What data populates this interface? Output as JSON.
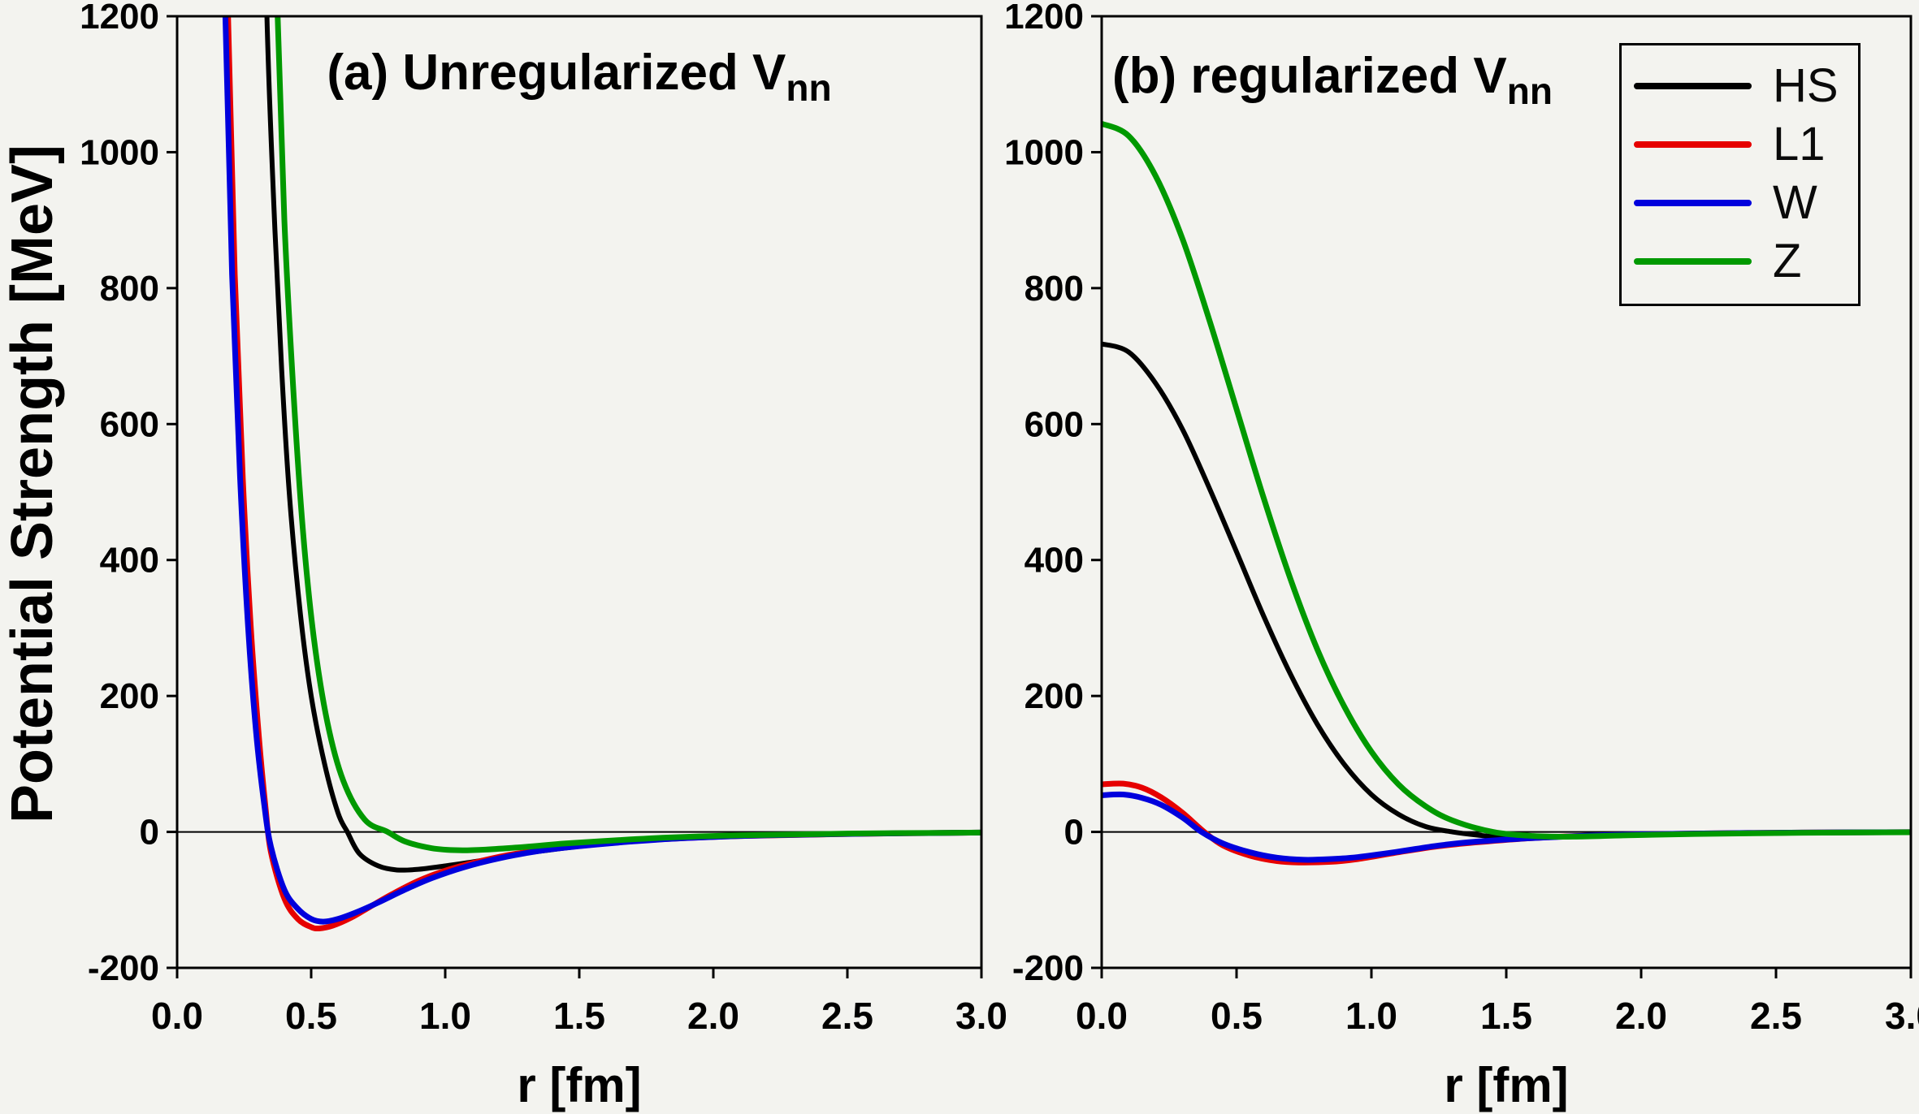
{
  "figure": {
    "background": "#f3f3ef",
    "y_axis_title": "Potential Strength [MeV]",
    "x_axis_title": "r [fm]"
  },
  "chart_data": {
    "type": "line",
    "xlabel": "r [fm]",
    "ylabel": "Potential Strength [MeV]",
    "xlim": [
      0,
      3
    ],
    "ylim": [
      -200,
      1200
    ],
    "grid": false,
    "zero_line": true,
    "yticks": [
      -200,
      0,
      200,
      400,
      600,
      800,
      1000,
      1200
    ],
    "xticks": [
      0,
      0.5,
      1,
      1.5,
      2,
      2.5,
      3
    ],
    "xtick_labels": [
      "0.0",
      "0.5",
      "1.0",
      "1.5",
      "2.0",
      "2.5",
      "3.0"
    ],
    "legend": {
      "position": "top-right of panel b",
      "entries": [
        {
          "label": "HS",
          "color": "#000000"
        },
        {
          "label": "L1",
          "color": "#e60000"
        },
        {
          "label": "W",
          "color": "#0000dd"
        },
        {
          "label": "Z",
          "color": "#009900"
        }
      ]
    },
    "panels": [
      {
        "id": "a",
        "title_prefix": "(a) Unregularized V",
        "title_sub": "nn",
        "series": [
          {
            "name": "HS",
            "color": "#000000",
            "points": [
              [
                0.3,
                2000
              ],
              [
                0.315,
                1600
              ],
              [
                0.335,
                1200
              ],
              [
                0.36,
                930
              ],
              [
                0.39,
                680
              ],
              [
                0.42,
                490
              ],
              [
                0.46,
                320
              ],
              [
                0.5,
                200
              ],
              [
                0.55,
                100
              ],
              [
                0.6,
                28
              ],
              [
                0.635,
                0
              ],
              [
                0.68,
                -32
              ],
              [
                0.75,
                -50
              ],
              [
                0.82,
                -56
              ],
              [
                0.9,
                -55
              ],
              [
                1.0,
                -50
              ],
              [
                1.12,
                -43
              ],
              [
                1.25,
                -34
              ],
              [
                1.4,
                -26
              ],
              [
                1.6,
                -17
              ],
              [
                1.8,
                -11
              ],
              [
                2.1,
                -6
              ],
              [
                2.5,
                -3
              ],
              [
                3.0,
                -1
              ]
            ]
          },
          {
            "name": "L1",
            "color": "#e60000",
            "points": [
              [
                0.145,
                2200
              ],
              [
                0.165,
                1700
              ],
              [
                0.19,
                1200
              ],
              [
                0.215,
                820
              ],
              [
                0.245,
                520
              ],
              [
                0.275,
                300
              ],
              [
                0.305,
                140
              ],
              [
                0.33,
                35
              ],
              [
                0.35,
                -30
              ],
              [
                0.4,
                -98
              ],
              [
                0.45,
                -128
              ],
              [
                0.5,
                -140
              ],
              [
                0.53,
                -142
              ],
              [
                0.58,
                -138
              ],
              [
                0.65,
                -126
              ],
              [
                0.72,
                -110
              ],
              [
                0.8,
                -92
              ],
              [
                0.9,
                -72
              ],
              [
                1.0,
                -57
              ],
              [
                1.12,
                -44
              ],
              [
                1.25,
                -33
              ],
              [
                1.4,
                -25
              ],
              [
                1.6,
                -17
              ],
              [
                1.8,
                -11
              ],
              [
                2.1,
                -6
              ],
              [
                2.5,
                -3
              ],
              [
                3.0,
                -1
              ]
            ]
          },
          {
            "name": "W",
            "color": "#0000dd",
            "points": [
              [
                0.135,
                2200
              ],
              [
                0.155,
                1700
              ],
              [
                0.18,
                1200
              ],
              [
                0.205,
                820
              ],
              [
                0.235,
                520
              ],
              [
                0.265,
                300
              ],
              [
                0.295,
                145
              ],
              [
                0.325,
                40
              ],
              [
                0.35,
                -22
              ],
              [
                0.4,
                -85
              ],
              [
                0.45,
                -113
              ],
              [
                0.5,
                -128
              ],
              [
                0.545,
                -132
              ],
              [
                0.6,
                -128
              ],
              [
                0.67,
                -118
              ],
              [
                0.75,
                -104
              ],
              [
                0.85,
                -85
              ],
              [
                0.95,
                -68
              ],
              [
                1.07,
                -52
              ],
              [
                1.2,
                -39
              ],
              [
                1.35,
                -28
              ],
              [
                1.5,
                -21
              ],
              [
                1.7,
                -14
              ],
              [
                1.9,
                -9
              ],
              [
                2.2,
                -5
              ],
              [
                2.6,
                -2.5
              ],
              [
                3.0,
                -1
              ]
            ]
          },
          {
            "name": "Z",
            "color": "#009900",
            "points": [
              [
                0.33,
                2000
              ],
              [
                0.35,
                1550
              ],
              [
                0.375,
                1200
              ],
              [
                0.4,
                900
              ],
              [
                0.435,
                640
              ],
              [
                0.47,
                440
              ],
              [
                0.51,
                285
              ],
              [
                0.56,
                162
              ],
              [
                0.62,
                75
              ],
              [
                0.7,
                18
              ],
              [
                0.785,
                0
              ],
              [
                0.85,
                -14
              ],
              [
                0.95,
                -24
              ],
              [
                1.05,
                -27
              ],
              [
                1.15,
                -26
              ],
              [
                1.3,
                -22
              ],
              [
                1.45,
                -17
              ],
              [
                1.65,
                -12
              ],
              [
                1.85,
                -8
              ],
              [
                2.1,
                -5
              ],
              [
                2.5,
                -2.5
              ],
              [
                3.0,
                -1
              ]
            ]
          }
        ]
      },
      {
        "id": "b",
        "title_prefix": "(b) regularized V",
        "title_sub": "nn",
        "series": [
          {
            "name": "HS",
            "color": "#000000",
            "points": [
              [
                0.0,
                718
              ],
              [
                0.1,
                706
              ],
              [
                0.2,
                660
              ],
              [
                0.3,
                592
              ],
              [
                0.4,
                505
              ],
              [
                0.5,
                412
              ],
              [
                0.6,
                318
              ],
              [
                0.7,
                232
              ],
              [
                0.8,
                158
              ],
              [
                0.9,
                99
              ],
              [
                1.0,
                55
              ],
              [
                1.1,
                26
              ],
              [
                1.2,
                8
              ],
              [
                1.3,
                0
              ],
              [
                1.4,
                -5
              ],
              [
                1.5,
                -8
              ],
              [
                1.65,
                -8
              ],
              [
                1.8,
                -6.5
              ],
              [
                2.0,
                -4.5
              ],
              [
                2.3,
                -2.5
              ],
              [
                2.6,
                -1.3
              ],
              [
                3.0,
                -0.5
              ]
            ]
          },
          {
            "name": "L1",
            "color": "#e60000",
            "points": [
              [
                0.0,
                70
              ],
              [
                0.08,
                71
              ],
              [
                0.15,
                65
              ],
              [
                0.22,
                51
              ],
              [
                0.3,
                28
              ],
              [
                0.38,
                0
              ],
              [
                0.45,
                -20
              ],
              [
                0.55,
                -35
              ],
              [
                0.65,
                -43
              ],
              [
                0.73,
                -45
              ],
              [
                0.85,
                -44
              ],
              [
                0.95,
                -40
              ],
              [
                1.1,
                -30
              ],
              [
                1.25,
                -21
              ],
              [
                1.4,
                -15
              ],
              [
                1.6,
                -9
              ],
              [
                1.8,
                -5.5
              ],
              [
                2.0,
                -3.5
              ],
              [
                2.3,
                -2
              ],
              [
                2.6,
                -1
              ],
              [
                3.0,
                -0.4
              ]
            ]
          },
          {
            "name": "W",
            "color": "#0000dd",
            "points": [
              [
                0.0,
                54
              ],
              [
                0.08,
                55
              ],
              [
                0.15,
                50
              ],
              [
                0.22,
                40
              ],
              [
                0.3,
                21
              ],
              [
                0.37,
                0
              ],
              [
                0.45,
                -17
              ],
              [
                0.55,
                -30
              ],
              [
                0.65,
                -38
              ],
              [
                0.75,
                -41
              ],
              [
                0.85,
                -40
              ],
              [
                0.95,
                -37
              ],
              [
                1.1,
                -29
              ],
              [
                1.25,
                -20
              ],
              [
                1.4,
                -14
              ],
              [
                1.6,
                -9
              ],
              [
                1.8,
                -5.5
              ],
              [
                2.0,
                -3.5
              ],
              [
                2.3,
                -2
              ],
              [
                2.6,
                -1
              ],
              [
                3.0,
                -0.4
              ]
            ]
          },
          {
            "name": "Z",
            "color": "#009900",
            "points": [
              [
                0.0,
                1042
              ],
              [
                0.1,
                1024
              ],
              [
                0.2,
                965
              ],
              [
                0.3,
                872
              ],
              [
                0.4,
                752
              ],
              [
                0.5,
                622
              ],
              [
                0.6,
                492
              ],
              [
                0.7,
                372
              ],
              [
                0.8,
                268
              ],
              [
                0.9,
                184
              ],
              [
                1.0,
                118
              ],
              [
                1.1,
                70
              ],
              [
                1.2,
                38
              ],
              [
                1.3,
                17
              ],
              [
                1.45,
                0
              ],
              [
                1.6,
                -6
              ],
              [
                1.75,
                -7
              ],
              [
                1.95,
                -5
              ],
              [
                2.2,
                -3
              ],
              [
                2.6,
                -1.3
              ],
              [
                3.0,
                -0.5
              ]
            ]
          }
        ]
      }
    ]
  }
}
